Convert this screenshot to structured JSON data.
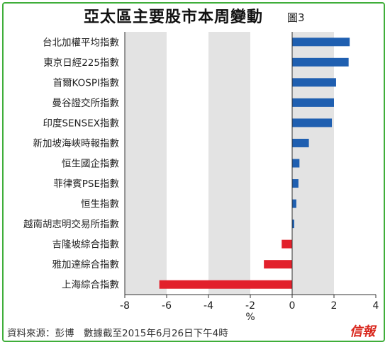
{
  "title": "亞太區主要股市本周變動",
  "figure_label": "圖3",
  "source_note": "資料來源：彭博　數據截至2015年6月26日下午4時",
  "logo_text": "信報",
  "colors": {
    "positive": "#1f5fb0",
    "negative": "#e2202b",
    "band": "#e3e3e3",
    "frame": "#3fae3a"
  },
  "chart_data": {
    "type": "bar",
    "orientation": "horizontal",
    "categories": [
      "台北加權平均指數",
      "東京日經225指數",
      "首爾KOSPI指數",
      "曼谷證交所指數",
      "印度SENSEX指數",
      "新加坡海峽時報指數",
      "恒生國企指數",
      "菲律賓PSE指數",
      "恒生指數",
      "越南胡志明交易所指數",
      "吉隆坡綜合指數",
      "雅加達綜合指數",
      "上海綜合指數"
    ],
    "values": [
      2.75,
      2.7,
      2.1,
      2.0,
      1.9,
      0.8,
      0.35,
      0.3,
      0.2,
      0.1,
      -0.5,
      -1.35,
      -6.35
    ],
    "xlabel": "%",
    "xlim": [
      -8,
      4
    ],
    "xticks": [
      "-8",
      "-6",
      "-4",
      "-2",
      "0",
      "2",
      "4"
    ],
    "grid": "alternating vertical bands"
  }
}
